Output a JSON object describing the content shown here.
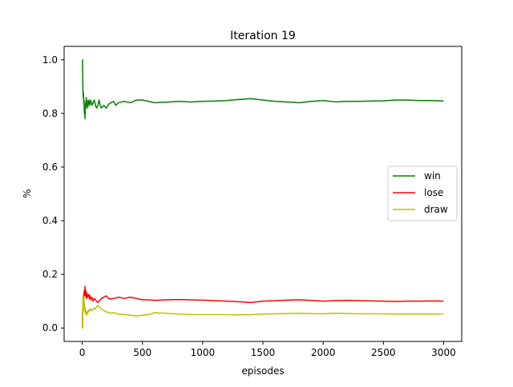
{
  "chart_data": {
    "type": "line",
    "title": "Iteration 19",
    "xlabel": "episodes",
    "ylabel": "%",
    "xlim": [
      -150,
      3150
    ],
    "ylim": [
      -0.05,
      1.05
    ],
    "xticks": [
      0,
      500,
      1000,
      1500,
      2000,
      2500,
      3000
    ],
    "yticks": [
      0.0,
      0.2,
      0.4,
      0.6,
      0.8,
      1.0
    ],
    "xtick_labels": [
      "0",
      "500",
      "1000",
      "1500",
      "2000",
      "2500",
      "3000"
    ],
    "ytick_labels": [
      "0.0",
      "0.2",
      "0.4",
      "0.6",
      "0.8",
      "1.0"
    ],
    "grid": false,
    "legend_position": "center-right",
    "series": [
      {
        "name": "win",
        "color": "#008000",
        "x": [
          1,
          2,
          3,
          5,
          8,
          10,
          12,
          15,
          18,
          20,
          23,
          25,
          28,
          30,
          33,
          35,
          40,
          45,
          50,
          55,
          60,
          65,
          70,
          80,
          90,
          100,
          110,
          120,
          130,
          140,
          150,
          160,
          180,
          200,
          220,
          240,
          260,
          280,
          300,
          350,
          400,
          450,
          500,
          550,
          600,
          700,
          800,
          900,
          1000,
          1100,
          1200,
          1300,
          1400,
          1500,
          1600,
          1700,
          1800,
          1900,
          2000,
          2100,
          2200,
          2300,
          2400,
          2500,
          2600,
          2700,
          2800,
          2900,
          3000
        ],
        "y": [
          1.0,
          1.0,
          1.0,
          0.92,
          0.86,
          0.88,
          0.84,
          0.85,
          0.8,
          0.83,
          0.78,
          0.81,
          0.84,
          0.82,
          0.86,
          0.83,
          0.85,
          0.82,
          0.84,
          0.85,
          0.83,
          0.84,
          0.85,
          0.83,
          0.84,
          0.85,
          0.83,
          0.82,
          0.83,
          0.85,
          0.83,
          0.82,
          0.83,
          0.82,
          0.835,
          0.84,
          0.845,
          0.83,
          0.84,
          0.845,
          0.84,
          0.85,
          0.85,
          0.845,
          0.84,
          0.842,
          0.845,
          0.843,
          0.845,
          0.846,
          0.848,
          0.852,
          0.855,
          0.85,
          0.845,
          0.843,
          0.84,
          0.845,
          0.848,
          0.843,
          0.845,
          0.845,
          0.846,
          0.847,
          0.85,
          0.85,
          0.848,
          0.848,
          0.846
        ]
      },
      {
        "name": "lose",
        "color": "#ff0000",
        "x": [
          1,
          2,
          3,
          5,
          8,
          10,
          12,
          15,
          18,
          20,
          23,
          25,
          28,
          30,
          33,
          35,
          40,
          45,
          50,
          55,
          60,
          65,
          70,
          80,
          90,
          100,
          110,
          120,
          130,
          140,
          150,
          160,
          180,
          200,
          220,
          240,
          260,
          280,
          300,
          350,
          400,
          450,
          500,
          550,
          600,
          700,
          800,
          900,
          1000,
          1100,
          1200,
          1300,
          1400,
          1500,
          1600,
          1700,
          1800,
          1900,
          2000,
          2100,
          2200,
          2300,
          2400,
          2500,
          2600,
          2700,
          2800,
          2900,
          3000
        ],
        "y": [
          0.0,
          0.0,
          0.05,
          0.08,
          0.1,
          0.12,
          0.11,
          0.13,
          0.14,
          0.12,
          0.155,
          0.13,
          0.12,
          0.14,
          0.12,
          0.11,
          0.13,
          0.115,
          0.12,
          0.125,
          0.11,
          0.12,
          0.105,
          0.115,
          0.1,
          0.11,
          0.105,
          0.1,
          0.095,
          0.1,
          0.105,
          0.11,
          0.115,
          0.12,
          0.11,
          0.108,
          0.11,
          0.112,
          0.115,
          0.11,
          0.115,
          0.11,
          0.105,
          0.105,
          0.103,
          0.105,
          0.106,
          0.105,
          0.104,
          0.102,
          0.1,
          0.098,
          0.095,
          0.1,
          0.102,
          0.104,
          0.105,
          0.103,
          0.1,
          0.102,
          0.103,
          0.102,
          0.101,
          0.1,
          0.099,
          0.1,
          0.1,
          0.101,
          0.1
        ]
      },
      {
        "name": "draw",
        "color": "#bfbf00",
        "x": [
          1,
          2,
          3,
          5,
          8,
          10,
          12,
          15,
          18,
          20,
          23,
          25,
          28,
          30,
          33,
          35,
          40,
          45,
          50,
          55,
          60,
          65,
          70,
          80,
          90,
          100,
          110,
          120,
          130,
          140,
          150,
          160,
          180,
          200,
          220,
          240,
          260,
          280,
          300,
          350,
          400,
          450,
          500,
          550,
          600,
          700,
          800,
          900,
          1000,
          1100,
          1200,
          1300,
          1400,
          1500,
          1600,
          1700,
          1800,
          1900,
          2000,
          2100,
          2200,
          2300,
          2400,
          2500,
          2600,
          2700,
          2800,
          2900,
          3000
        ],
        "y": [
          0.0,
          0.0,
          0.0,
          0.1,
          0.12,
          0.06,
          0.1,
          0.11,
          0.08,
          0.07,
          0.08,
          0.06,
          0.055,
          0.065,
          0.05,
          0.06,
          0.05,
          0.06,
          0.065,
          0.06,
          0.07,
          0.065,
          0.07,
          0.065,
          0.07,
          0.075,
          0.07,
          0.08,
          0.085,
          0.08,
          0.075,
          0.07,
          0.065,
          0.06,
          0.058,
          0.055,
          0.057,
          0.055,
          0.052,
          0.05,
          0.048,
          0.045,
          0.048,
          0.05,
          0.057,
          0.055,
          0.052,
          0.05,
          0.05,
          0.05,
          0.05,
          0.049,
          0.05,
          0.052,
          0.053,
          0.054,
          0.055,
          0.054,
          0.053,
          0.055,
          0.054,
          0.053,
          0.053,
          0.053,
          0.052,
          0.052,
          0.052,
          0.052,
          0.053
        ]
      }
    ]
  }
}
